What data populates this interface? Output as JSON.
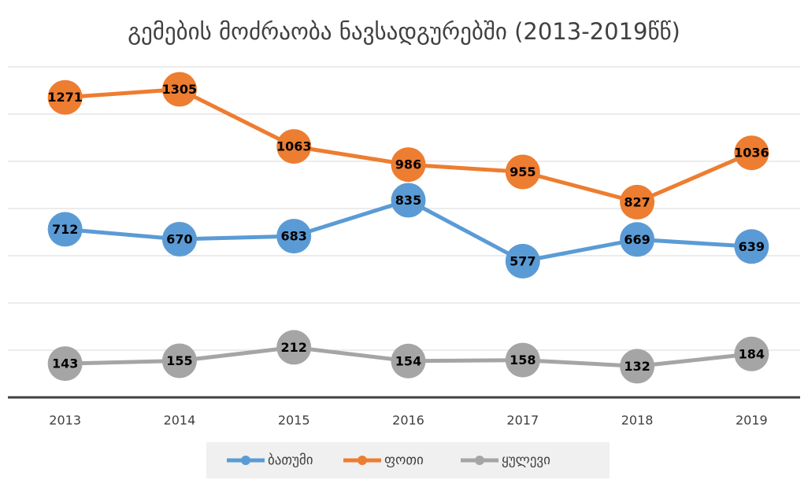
{
  "chart_data": {
    "type": "line",
    "title": "გემების მოძრაობა ნავსადგურებში (2013-2019წწ)",
    "categories": [
      "2013",
      "2014",
      "2015",
      "2016",
      "2017",
      "2018",
      "2019"
    ],
    "series": [
      {
        "name": "ბათუმი",
        "color": "#5b9bd5",
        "values": [
          712,
          670,
          683,
          835,
          577,
          669,
          639
        ]
      },
      {
        "name": "ფოთი",
        "color": "#ed7d31",
        "values": [
          1271,
          1305,
          1063,
          986,
          955,
          827,
          1036
        ]
      },
      {
        "name": "ყულევი",
        "color": "#a5a5a5",
        "values": [
          143,
          155,
          212,
          154,
          158,
          132,
          184
        ]
      }
    ],
    "ylim": [
      0,
      1400
    ],
    "yticks": [
      0,
      200,
      400,
      600,
      800,
      1000,
      1200,
      1400
    ],
    "grid": true,
    "legend": "bottom"
  }
}
